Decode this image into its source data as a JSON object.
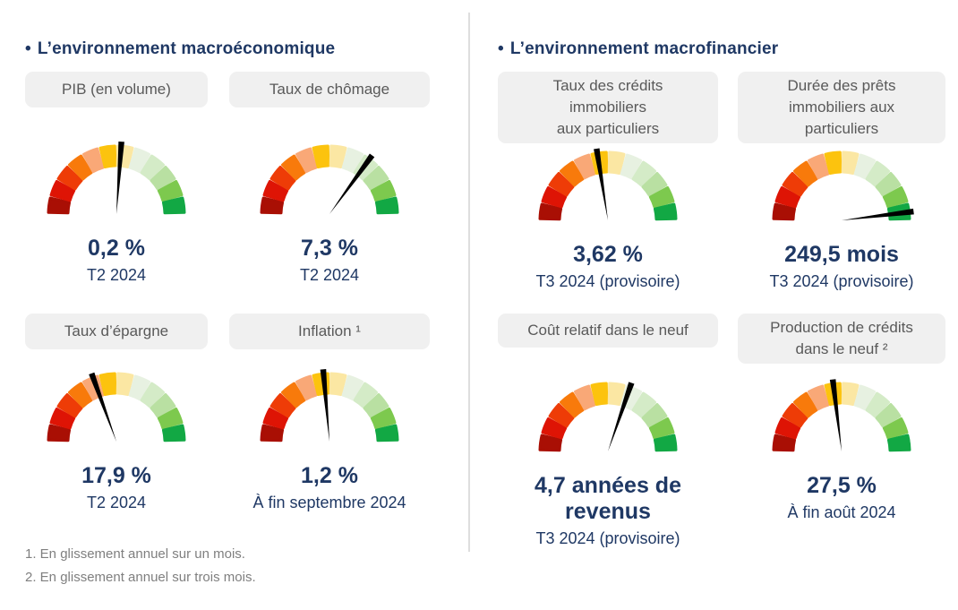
{
  "ui": {
    "bullet": "•"
  },
  "colors": {
    "navy": "#1f3864",
    "pill_bg": "#f0f0f0",
    "pill_text": "#595959",
    "footnote_text": "#7f7f7f",
    "needle": "#000000",
    "gauge_segments": [
      "#a90f04",
      "#de1405",
      "#ee3c07",
      "#f87a0b",
      "#f9a877",
      "#fcc30e",
      "#fbe7a3",
      "#e7f1e1",
      "#d4ebc7",
      "#b9e0a2",
      "#7dc94e",
      "#12a844"
    ]
  },
  "sections": [
    {
      "title": "L’environnement macroéconomique",
      "gauges": [
        {
          "label": "PIB (en volume)",
          "value_label": "0,2 %",
          "period": "T2 2024",
          "needle_deg": 4
        },
        {
          "label": "Taux de chômage",
          "value_label": "7,3 %",
          "period": "T2 2024",
          "needle_deg": 36
        },
        {
          "label": "Taux d’épargne",
          "value_label": "17,9 %",
          "period": "T2 2024",
          "needle_deg": -20
        },
        {
          "label": "Inflation ¹",
          "value_label": "1,2 %",
          "period": "À fin septembre 2024",
          "needle_deg": -5
        }
      ]
    },
    {
      "title": "L’environnement macrofinancier",
      "gauges": [
        {
          "label": "Taux des crédits\nimmobiliers\naux particuliers",
          "value_label": "3,62 %",
          "period": "T3 2024 (provisoire)",
          "needle_deg": -9
        },
        {
          "label": "Durée des prêts\nimmobiliers aux\nparticuliers",
          "value_label": "249,5 mois",
          "period": "T3 2024 (provisoire)",
          "needle_deg": 83
        },
        {
          "label": "Coût relatif dans le neuf",
          "value_label": "4,7 années de\nrevenus",
          "period": "T3 2024 (provisoire)",
          "needle_deg": 19
        },
        {
          "label": "Production de crédits\ndans le neuf ²",
          "value_label": "27,5 %",
          "period": "À fin août 2024",
          "needle_deg": -7
        }
      ]
    }
  ],
  "footnotes": [
    "1. En glissement annuel sur un mois.",
    "2. En glissement annuel sur trois mois."
  ],
  "chart_data": [
    {
      "type": "gauge",
      "title": "PIB (en volume)",
      "value": 0.2,
      "unit": "%",
      "display_value": "0,2 %",
      "period": "T2 2024",
      "scale": "180° semicircle, 12 color segments red→green",
      "needle_deg_from_vertical": 4
    },
    {
      "type": "gauge",
      "title": "Taux de chômage",
      "value": 7.3,
      "unit": "%",
      "display_value": "7,3 %",
      "period": "T2 2024",
      "scale": "180° semicircle, 12 color segments red→green",
      "needle_deg_from_vertical": 36
    },
    {
      "type": "gauge",
      "title": "Taux d’épargne",
      "value": 17.9,
      "unit": "%",
      "display_value": "17,9 %",
      "period": "T2 2024",
      "scale": "180° semicircle, 12 color segments red→green",
      "needle_deg_from_vertical": -20
    },
    {
      "type": "gauge",
      "title": "Inflation",
      "value": 1.2,
      "unit": "%",
      "display_value": "1,2 %",
      "period": "À fin septembre 2024",
      "footnote_ref": 1,
      "scale": "180° semicircle, 12 color segments red→green",
      "needle_deg_from_vertical": -5
    },
    {
      "type": "gauge",
      "title": "Taux des crédits immobiliers aux particuliers",
      "value": 3.62,
      "unit": "%",
      "display_value": "3,62 %",
      "period": "T3 2024 (provisoire)",
      "scale": "180° semicircle, 12 color segments red→green",
      "needle_deg_from_vertical": -9
    },
    {
      "type": "gauge",
      "title": "Durée des prêts immobiliers aux particuliers",
      "value": 249.5,
      "unit": "mois",
      "display_value": "249,5 mois",
      "period": "T3 2024 (provisoire)",
      "scale": "180° semicircle, 12 color segments red→green",
      "needle_deg_from_vertical": 83
    },
    {
      "type": "gauge",
      "title": "Coût relatif dans le neuf",
      "value": 4.7,
      "unit": "années de revenus",
      "display_value": "4,7 années de revenus",
      "period": "T3 2024 (provisoire)",
      "scale": "180° semicircle, 12 color segments red→green",
      "needle_deg_from_vertical": 19
    },
    {
      "type": "gauge",
      "title": "Production de crédits dans le neuf",
      "value": 27.5,
      "unit": "%",
      "display_value": "27,5 %",
      "period": "À fin août 2024",
      "footnote_ref": 2,
      "scale": "180° semicircle, 12 color segments red→green",
      "needle_deg_from_vertical": -7
    }
  ]
}
